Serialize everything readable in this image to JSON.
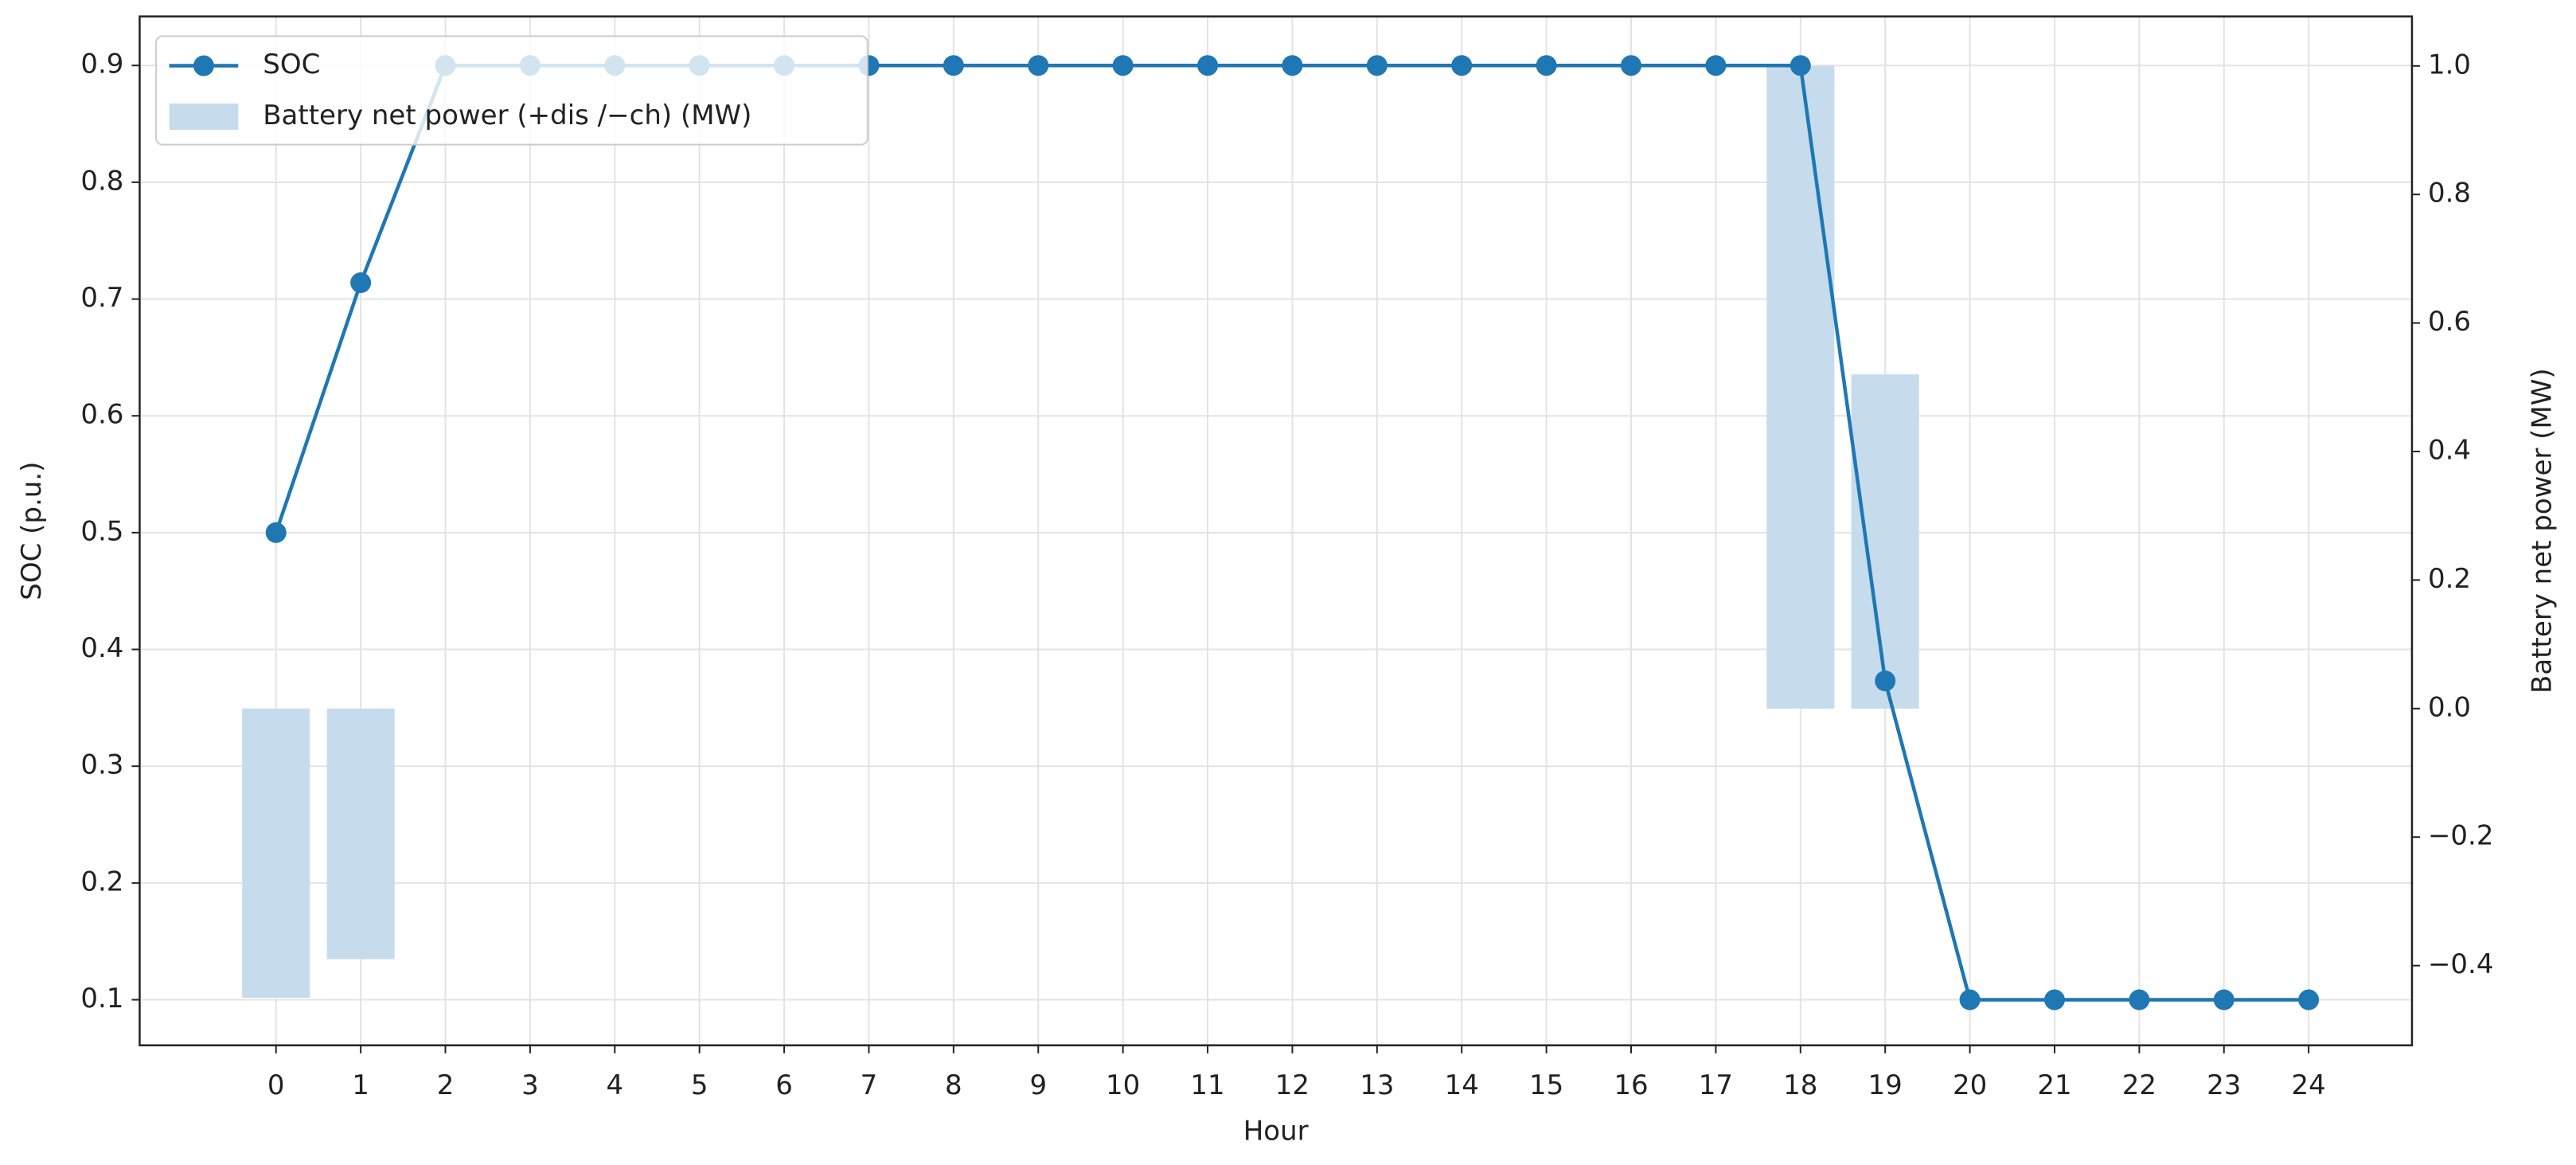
{
  "chart_data": {
    "type": "combo",
    "x_label": "Hour",
    "y_label": "SOC (p.u.)",
    "y2_label": "Battery net power (MW)",
    "x": [
      0,
      1,
      2,
      3,
      4,
      5,
      6,
      7,
      8,
      9,
      10,
      11,
      12,
      13,
      14,
      15,
      16,
      17,
      18,
      19,
      20,
      21,
      22,
      23,
      24
    ],
    "series": [
      {
        "name": "SOC",
        "type": "line",
        "color": "#1f77b4",
        "values": [
          0.5,
          0.714,
          0.9,
          0.9,
          0.9,
          0.9,
          0.9,
          0.9,
          0.9,
          0.9,
          0.9,
          0.9,
          0.9,
          0.9,
          0.9,
          0.9,
          0.9,
          0.9,
          0.9,
          0.373,
          0.1,
          0.1,
          0.1,
          0.1,
          0.1
        ]
      },
      {
        "name": "Battery net power (+dis /−ch) (MW)",
        "type": "bar",
        "axis": "y2",
        "color": "#c6dcec",
        "values": [
          -0.45,
          -0.39,
          0,
          0,
          0,
          0,
          0,
          0,
          0,
          0,
          0,
          0,
          0,
          0,
          0,
          0,
          0,
          0,
          1.0,
          0.52,
          0,
          0,
          0,
          0,
          0
        ]
      }
    ],
    "xlim": [
      -1.61,
      25.22
    ],
    "xticks": [
      0,
      1,
      2,
      3,
      4,
      5,
      6,
      7,
      8,
      9,
      10,
      11,
      12,
      13,
      14,
      15,
      16,
      17,
      18,
      19,
      20,
      21,
      22,
      23,
      24
    ],
    "ylim": [
      0.061,
      0.942
    ],
    "yticks": [
      0.1,
      0.2,
      0.3,
      0.4,
      0.5,
      0.6,
      0.7,
      0.8,
      0.9
    ],
    "y2lim": [
      -0.524,
      1.077
    ],
    "y2ticks": [
      {
        "value": -0.4,
        "label": "−0.4"
      },
      {
        "value": -0.2,
        "label": "−0.2"
      },
      {
        "value": 0,
        "label": "0.0"
      },
      0.2,
      0.4,
      0.6,
      0.8,
      {
        "value": 1,
        "label": "1.0"
      }
    ],
    "grid": true,
    "legend": "upper left"
  }
}
